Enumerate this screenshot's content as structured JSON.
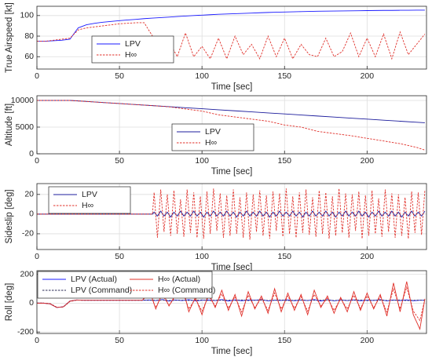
{
  "chart_data": [
    {
      "type": "line",
      "ylabel": "True Airspeed [kt]",
      "xlabel": "Time [sec]",
      "xlim": [
        0,
        236
      ],
      "xticks": [
        0,
        50,
        100,
        150,
        200
      ],
      "ylim": [
        48,
        109
      ],
      "yticks": [
        60,
        80,
        100
      ],
      "grid": true,
      "legend": "southwest",
      "legend_columns": 1,
      "x": [
        0,
        5,
        10,
        15,
        20,
        25,
        30,
        35,
        40,
        45,
        50,
        55,
        60,
        65,
        70,
        75,
        80,
        85,
        90,
        95,
        100,
        105,
        110,
        115,
        120,
        125,
        130,
        135,
        140,
        145,
        150,
        155,
        160,
        165,
        170,
        175,
        180,
        185,
        190,
        195,
        200,
        205,
        210,
        215,
        220,
        225,
        230,
        235
      ],
      "series": [
        {
          "name": "LPV",
          "color": "#1a1aff",
          "style": "solid",
          "values": [
            75,
            75,
            75.5,
            76,
            77,
            88,
            91,
            92.5,
            93.5,
            94.3,
            95,
            95.7,
            96.3,
            97,
            97.5,
            98,
            98.5,
            99,
            99.5,
            100,
            100.4,
            100.8,
            101.2,
            101.5,
            101.8,
            102.1,
            102.4,
            102.7,
            103,
            103.2,
            103.4,
            103.6,
            103.8,
            104,
            104.2,
            104.3,
            104.4,
            104.5,
            104.6,
            104.7,
            104.8,
            104.9,
            105,
            105,
            105.1,
            105.1,
            105.2,
            105.2
          ]
        },
        {
          "name": "H∞",
          "color": "#e0302a",
          "style": "dashed",
          "values": [
            75,
            75,
            76,
            77,
            78,
            86,
            88,
            89,
            90,
            91,
            92,
            92.5,
            93,
            93,
            80,
            65,
            75,
            60,
            83,
            60,
            70,
            58,
            78,
            58,
            80,
            62,
            72,
            58,
            80,
            60,
            78,
            58,
            72,
            62,
            60,
            78,
            60,
            65,
            83,
            60,
            78,
            60,
            82,
            58,
            84,
            62,
            72,
            82
          ]
        }
      ]
    },
    {
      "type": "line",
      "ylabel": "Altitude [ft]",
      "xlabel": "Time [sec]",
      "xlim": [
        0,
        236
      ],
      "xticks": [
        0,
        50,
        100,
        150,
        200
      ],
      "ylim": [
        0,
        10880
      ],
      "yticks": [
        0,
        5000,
        10000
      ],
      "grid": true,
      "legend": "south",
      "legend_columns": 1,
      "x": [
        0,
        10,
        20,
        30,
        40,
        50,
        60,
        70,
        80,
        90,
        100,
        110,
        120,
        130,
        140,
        150,
        160,
        170,
        180,
        190,
        200,
        210,
        220,
        230,
        235
      ],
      "series": [
        {
          "name": "LPV",
          "color": "#1c1c9c",
          "style": "solid",
          "values": [
            10000,
            10000,
            10000,
            9805,
            9610,
            9415,
            9220,
            9025,
            8830,
            8635,
            8440,
            8245,
            8050,
            7855,
            7660,
            7465,
            7270,
            7075,
            6880,
            6685,
            6490,
            6295,
            6100,
            5905,
            5810
          ]
        },
        {
          "name": "H∞",
          "color": "#e0302a",
          "style": "dashed",
          "values": [
            10000,
            10000,
            10000,
            9805,
            9610,
            9415,
            9220,
            9025,
            8800,
            8400,
            8000,
            7300,
            6900,
            6500,
            6100,
            5400,
            5000,
            4200,
            3800,
            3400,
            2900,
            2400,
            1900,
            1200,
            700
          ]
        }
      ]
    },
    {
      "type": "line",
      "ylabel": "Sideslip [deg]",
      "xlabel": "Time [sec]",
      "xlim": [
        0,
        236
      ],
      "xticks": [
        0,
        50,
        100,
        150,
        200
      ],
      "ylim": [
        -36,
        31
      ],
      "yticks": [
        -20,
        0,
        20
      ],
      "grid": true,
      "legend": "northwest",
      "legend_columns": 1,
      "x": [
        0,
        70,
        71,
        73,
        75,
        77,
        79,
        81,
        83,
        85,
        87,
        89,
        91,
        93,
        95,
        97,
        99,
        101,
        103,
        105,
        107,
        109,
        111,
        113,
        115,
        117,
        119,
        121,
        123,
        125,
        127,
        129,
        131,
        133,
        135,
        137,
        139,
        141,
        143,
        145,
        147,
        149,
        151,
        153,
        155,
        157,
        159,
        161,
        163,
        165,
        167,
        169,
        171,
        173,
        175,
        177,
        179,
        181,
        183,
        185,
        187,
        189,
        191,
        193,
        195,
        197,
        199,
        201,
        203,
        205,
        207,
        209,
        211,
        213,
        215,
        217,
        219,
        221,
        223,
        225,
        227,
        229,
        231,
        233,
        235
      ],
      "series": [
        {
          "name": "LPV",
          "color": "#1c1c9c",
          "style": "solid",
          "values": [
            0,
            0,
            2,
            -2,
            3,
            -2,
            2,
            -3,
            2,
            -2,
            3,
            -2,
            2,
            -2,
            3,
            -2,
            2,
            -3,
            2,
            -2,
            3,
            -2,
            2,
            -2,
            3,
            -2,
            2,
            -3,
            2,
            -2,
            3,
            -2,
            2,
            -2,
            3,
            -2,
            2,
            -3,
            2,
            -2,
            3,
            -2,
            2,
            -2,
            3,
            -2,
            2,
            -3,
            2,
            -2,
            3,
            -2,
            2,
            -2,
            3,
            -2,
            2,
            -3,
            2,
            -2,
            3,
            -2,
            2,
            -2,
            3,
            -2,
            2,
            -3,
            2,
            -2,
            3,
            -2,
            2,
            -2,
            3,
            -2,
            2,
            -3,
            2,
            -2,
            3,
            -2,
            2,
            -2,
            3
          ]
        },
        {
          "name": "H∞",
          "color": "#e0302a",
          "style": "dashed",
          "values": [
            0,
            0,
            22,
            -24,
            25,
            -18,
            20,
            -22,
            24,
            -20,
            15,
            -23,
            25,
            -19,
            22,
            -24,
            18,
            -25,
            23,
            -20,
            26,
            -17,
            21,
            -24,
            19,
            -22,
            25,
            -20,
            17,
            -24,
            22,
            -26,
            20,
            -18,
            24,
            -22,
            19,
            -25,
            23,
            -17,
            21,
            -23,
            26,
            -20,
            18,
            -24,
            22,
            -19,
            25,
            -21,
            17,
            -23,
            24,
            -20,
            22,
            -25,
            18,
            -22,
            26,
            -19,
            21,
            -24,
            20,
            -17,
            23,
            -25,
            19,
            -22,
            24,
            -20,
            16,
            -23,
            25,
            -18,
            21,
            -24,
            20,
            -22,
            17,
            -25,
            23,
            -19,
            22,
            -21,
            24
          ]
        }
      ]
    },
    {
      "type": "line",
      "ylabel": "Roll [deg]",
      "xlabel": "Time [sec]",
      "xlim": [
        0,
        236
      ],
      "xticks": [
        0,
        50,
        100,
        150,
        200
      ],
      "ylim": [
        -210,
        225
      ],
      "yticks": [
        -200,
        0,
        200
      ],
      "grid": true,
      "legend": "north",
      "legend_columns": 2,
      "x": [
        0,
        4,
        8,
        12,
        16,
        20,
        24,
        28,
        32,
        36,
        40,
        44,
        48,
        52,
        56,
        60,
        64,
        68,
        72,
        76,
        80,
        84,
        88,
        92,
        96,
        100,
        104,
        108,
        112,
        116,
        120,
        124,
        128,
        132,
        136,
        140,
        144,
        148,
        152,
        156,
        160,
        164,
        168,
        172,
        176,
        180,
        184,
        188,
        192,
        196,
        200,
        204,
        208,
        212,
        216,
        220,
        224,
        228,
        232,
        235
      ],
      "series": [
        {
          "name": "LPV (Actual)",
          "color": "#1a1aff",
          "style": "solid",
          "values": [
            0,
            0,
            -5,
            -30,
            -25,
            15,
            22,
            20,
            20,
            20,
            20,
            20,
            20,
            20,
            20,
            20,
            20,
            22,
            18,
            25,
            15,
            22,
            18,
            24,
            16,
            20,
            22,
            18,
            25,
            15,
            23,
            17,
            22,
            20,
            24,
            16,
            21,
            19,
            23,
            17,
            22,
            18,
            25,
            15,
            24,
            16,
            22,
            18,
            23,
            17,
            21,
            19,
            24,
            16,
            22,
            18,
            23,
            17,
            20,
            20
          ]
        },
        {
          "name": "H∞ (Actual)",
          "color": "#e0302a",
          "style": "solid",
          "values": [
            0,
            0,
            -5,
            -30,
            -25,
            15,
            22,
            20,
            20,
            20,
            20,
            20,
            20,
            20,
            20,
            20,
            20,
            100,
            -40,
            80,
            -20,
            60,
            130,
            -60,
            40,
            -80,
            70,
            -30,
            90,
            -50,
            60,
            -90,
            80,
            -40,
            50,
            -70,
            100,
            -60,
            70,
            -50,
            60,
            -80,
            90,
            -30,
            50,
            -70,
            40,
            -60,
            80,
            -50,
            70,
            -40,
            60,
            -90,
            140,
            -60,
            150,
            -80,
            -180,
            30
          ]
        },
        {
          "name": "LPV (Command)",
          "color": "#2a2a55",
          "style": "dashed",
          "values": [
            0,
            0,
            -3,
            -28,
            -27,
            12,
            21,
            20,
            20,
            20,
            20,
            20,
            20,
            20,
            20,
            20,
            20,
            20,
            20,
            22,
            18,
            20,
            21,
            19,
            20,
            22,
            18,
            20,
            20,
            21,
            19,
            22,
            18,
            20,
            21,
            19,
            20,
            22,
            18,
            20,
            21,
            19,
            20,
            20,
            22,
            18,
            21,
            19,
            20,
            22,
            18,
            20,
            21,
            19,
            20,
            22,
            18,
            20,
            21,
            20
          ]
        },
        {
          "name": "H∞ (Command)",
          "color": "#e0302a",
          "style": "dashed",
          "values": [
            0,
            0,
            -3,
            -28,
            -27,
            12,
            21,
            20,
            20,
            20,
            20,
            20,
            20,
            20,
            20,
            20,
            20,
            70,
            -30,
            55,
            -15,
            45,
            90,
            -40,
            30,
            -55,
            50,
            -20,
            65,
            -35,
            45,
            -60,
            55,
            -30,
            35,
            -50,
            70,
            -40,
            50,
            -35,
            45,
            -55,
            60,
            -20,
            35,
            -50,
            30,
            -40,
            55,
            -35,
            50,
            -30,
            45,
            -60,
            100,
            -40,
            110,
            -55,
            -120,
            25
          ]
        }
      ]
    }
  ]
}
